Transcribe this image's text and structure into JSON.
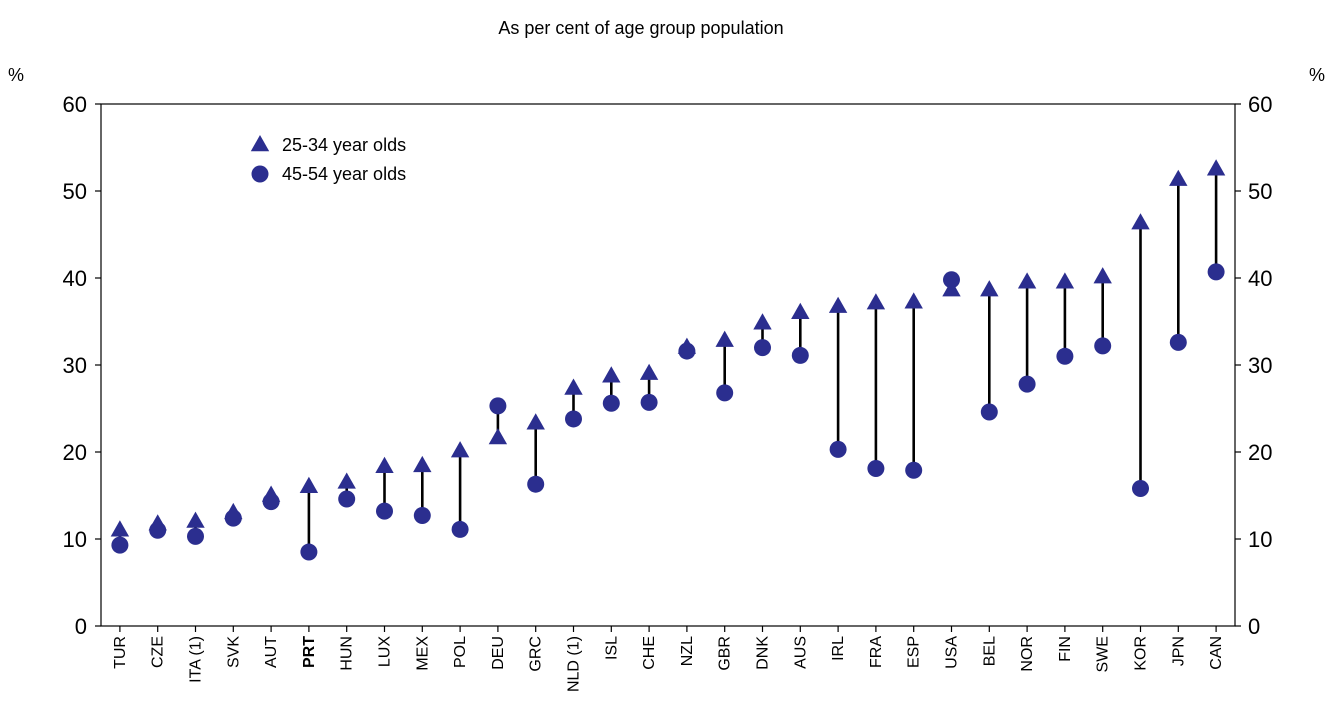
{
  "chart_data": {
    "type": "scatter",
    "title": "As per cent of age group population",
    "ylabel_left": "%",
    "ylabel_right": "%",
    "ylim": [
      0,
      60
    ],
    "yticks": [
      0,
      10,
      20,
      30,
      40,
      50,
      60
    ],
    "grid": false,
    "legend_position": "top-left",
    "bold_categories": [
      "PRT"
    ],
    "categories": [
      "TUR",
      "CZE",
      "ITA (1)",
      "SVK",
      "AUT",
      "PRT",
      "HUN",
      "LUX",
      "MEX",
      "POL",
      "DEU",
      "GRC",
      "NLD (1)",
      "ISL",
      "CHE",
      "NZL",
      "GBR",
      "DNK",
      "AUS",
      "IRL",
      "FRA",
      "ESP",
      "USA",
      "BEL",
      "NOR",
      "FIN",
      "SWE",
      "KOR",
      "JPN",
      "CAN"
    ],
    "series": [
      {
        "name": "25-34 year olds",
        "marker": "triangle",
        "color": "#2b2e8f",
        "values": [
          11,
          11.7,
          12,
          13,
          15,
          16,
          16.5,
          18.3,
          18.4,
          20.1,
          21.6,
          23.3,
          27.3,
          28.7,
          29,
          32,
          32.8,
          34.8,
          36,
          36.7,
          37.1,
          37.2,
          38.6,
          38.6,
          39.5,
          39.5,
          40.1,
          46.3,
          51.3,
          52.5
        ]
      },
      {
        "name": "45-54 year olds",
        "marker": "circle",
        "color": "#2b2e8f",
        "values": [
          9.3,
          11,
          10.3,
          12.4,
          14.3,
          8.5,
          14.6,
          13.2,
          12.7,
          11.1,
          25.3,
          16.3,
          23.8,
          25.6,
          25.7,
          31.6,
          26.8,
          32,
          31.1,
          20.3,
          18.1,
          17.9,
          39.8,
          24.6,
          27.8,
          31,
          32.2,
          15.8,
          32.6,
          40.7
        ]
      }
    ]
  }
}
